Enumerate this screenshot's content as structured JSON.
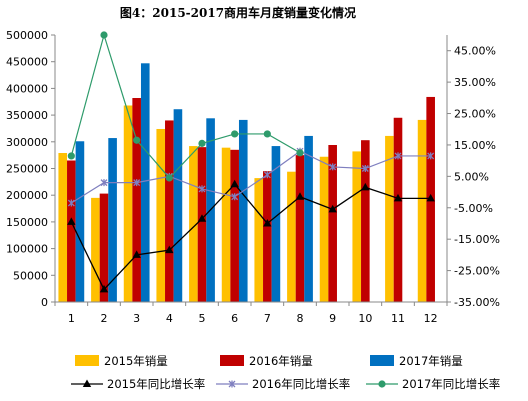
{
  "chart_data": {
    "type": "bar",
    "title": "图4：2015-2017商用车月度销量变化情况",
    "categories": [
      "1",
      "2",
      "3",
      "4",
      "5",
      "6",
      "7",
      "8",
      "9",
      "10",
      "11",
      "12"
    ],
    "y_left": {
      "min": 0,
      "max": 500000,
      "step": 50000,
      "tick_labels": [
        "0",
        "50000",
        "100000",
        "150000",
        "200000",
        "250000",
        "300000",
        "350000",
        "400000",
        "450000",
        "500000"
      ]
    },
    "y_right": {
      "min": -35,
      "max": 50,
      "step": 10,
      "first_tick": -35,
      "tick_labels": [
        "-35.00%",
        "-25.00%",
        "-15.00%",
        "-5.00%",
        "5.00%",
        "15.00%",
        "25.00%",
        "35.00%",
        "45.00%"
      ]
    },
    "bar_series": [
      {
        "name": "2015年销量",
        "color": "#FFC000",
        "values": [
          279000,
          195000,
          368000,
          324000,
          292000,
          289000,
          232000,
          244000,
          272000,
          282000,
          311000,
          341000
        ]
      },
      {
        "name": "2016年销量",
        "color": "#C00000",
        "values": [
          265000,
          203000,
          382000,
          340000,
          290000,
          285000,
          245000,
          275000,
          294000,
          303000,
          345000,
          384000
        ]
      },
      {
        "name": "2017年销量",
        "color": "#0070C0",
        "values": [
          301000,
          307000,
          447000,
          361000,
          344000,
          341000,
          292000,
          311000,
          null,
          null,
          null,
          null
        ]
      }
    ],
    "line_series": [
      {
        "name": "2015年同比增长率",
        "color": "#000000",
        "marker": "triangle",
        "values": [
          -9.5,
          -31.0,
          -20.0,
          -18.5,
          -8.5,
          2.5,
          -10.0,
          -1.5,
          -5.5,
          1.5,
          -2.0,
          -2.0
        ]
      },
      {
        "name": "2016年同比增长率",
        "color": "#7F7FBF",
        "marker": "x",
        "values": [
          -3.5,
          3.0,
          3.0,
          5.0,
          1.0,
          -1.5,
          5.5,
          13.0,
          8.0,
          7.5,
          11.5,
          11.5
        ]
      },
      {
        "name": "2017年同比增长率",
        "color": "#2E9B6B",
        "marker": "circle",
        "values": [
          11.5,
          50.0,
          16.5,
          4.5,
          15.5,
          18.5,
          18.5,
          12.5,
          null,
          null,
          null,
          null
        ]
      }
    ],
    "legend_position": "bottom",
    "grid": false
  }
}
